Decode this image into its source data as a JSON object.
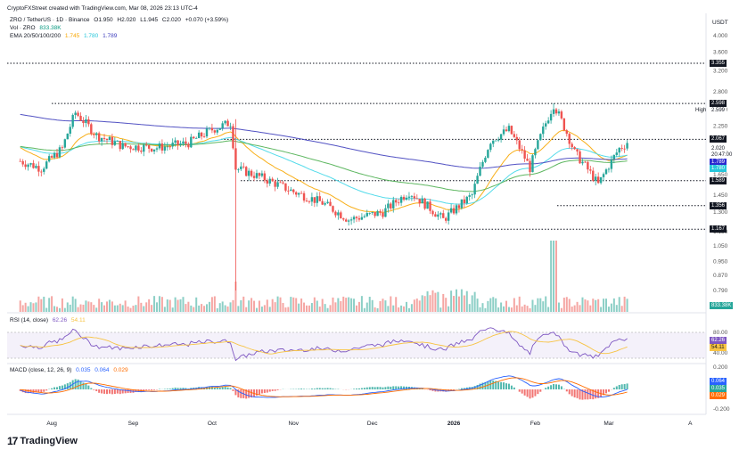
{
  "header": {
    "credit": "CryptoFXStreet created with TradingView.com, Mar 08, 2026 23:13 UTC-4",
    "currency": "USDT",
    "symbol_line": "ZRO / TetherUS · 1D · Binance",
    "ohlc": {
      "o": "O1.950",
      "h": "H2.020",
      "l": "L1.945",
      "c": "C2.020",
      "chg": "+0.070 (+3.59%)"
    },
    "vol_label": "Vol · ZRO",
    "vol_value": "833.38K",
    "ema_label": "EMA 20/50/100/200",
    "ema_values": [
      "1.745",
      "1.780",
      "1.789"
    ],
    "rsi_label": "RSI (14, close)",
    "rsi_values": [
      "62.26",
      "54.11"
    ],
    "macd_label": "MACD (close, 12, 26, 9)",
    "macd_values": [
      "0.035",
      "0.064",
      "0.029"
    ]
  },
  "colors": {
    "up": "#26a69a",
    "down": "#ef5350",
    "vol_up": "#8ccfc6",
    "vol_down": "#f5a6a3",
    "ema20": "#f7a600",
    "ema50": "#40d7e8",
    "ema100": "#4caf50",
    "ema200": "#3f3fbd",
    "rsi": "#7e57c2",
    "rsi_ma": "#f7c343",
    "macd": "#2962ff",
    "signal": "#ff6d00"
  },
  "price_axis": [
    "4.000",
    "3.600",
    "3.200",
    "2.800",
    "2.500",
    "2.250",
    "1.900",
    "1.650",
    "1.450",
    "1.300",
    "1.150",
    "1.050",
    "0.950",
    "0.870",
    "0.790"
  ],
  "price_labels": [
    {
      "text": "3.355",
      "bg": "#131722",
      "fg": "#ffffff"
    },
    {
      "text": "2.598",
      "bg": "#131722",
      "fg": "#ffffff"
    },
    {
      "text": "2.599",
      "bg": "#ffffff",
      "fg": "#131722"
    },
    {
      "text": "High",
      "bg": "#ffffff",
      "fg": "#131722"
    },
    {
      "text": "2.067",
      "bg": "#131722",
      "fg": "#ffffff"
    },
    {
      "text": "2.020",
      "bg": "#ffffff",
      "fg": "#131722"
    },
    {
      "text": "20:47:00",
      "bg": "#ffffff",
      "fg": "#131722"
    },
    {
      "text": "1.789",
      "bg": "#2a2ad0",
      "fg": "#ffffff"
    },
    {
      "text": "1.780",
      "bg": "#26c6da",
      "fg": "#ffffff"
    },
    {
      "text": "1.589",
      "bg": "#131722",
      "fg": "#ffffff"
    },
    {
      "text": "1.356",
      "bg": "#131722",
      "fg": "#ffffff"
    },
    {
      "text": "1.167",
      "bg": "#131722",
      "fg": "#ffffff"
    },
    {
      "text": "833.38K",
      "bg": "#26a69a",
      "fg": "#ffffff"
    }
  ],
  "rsi_axis": [
    "80.00",
    "40.00"
  ],
  "rsi_tags": [
    "62.26",
    "54.11"
  ],
  "macd_axis": [
    "0.200",
    "-0.200"
  ],
  "macd_tags": [
    "0.064",
    "0.035",
    "0.029"
  ],
  "time_axis": [
    "Aug",
    "Sep",
    "Oct",
    "Nov",
    "Dec",
    "2026",
    "Feb",
    "Mar",
    "A"
  ],
  "brand": "TradingView",
  "chart_data": {
    "type": "candlestick",
    "levels": [
      3.355,
      2.598,
      2.067,
      1.589,
      1.356,
      1.167
    ],
    "points": [
      {
        "date": "2025-07-20",
        "close": 1.8
      },
      {
        "date": "2025-07-28",
        "close": 1.72
      },
      {
        "date": "2025-08-05",
        "close": 1.95
      },
      {
        "date": "2025-08-10",
        "close": 2.45
      },
      {
        "date": "2025-08-18",
        "close": 2.12
      },
      {
        "date": "2025-08-28",
        "close": 1.98
      },
      {
        "date": "2025-09-10",
        "close": 1.96
      },
      {
        "date": "2025-09-22",
        "close": 2.02
      },
      {
        "date": "2025-10-01",
        "close": 2.2
      },
      {
        "date": "2025-10-08",
        "close": 2.3
      },
      {
        "date": "2025-10-10",
        "close": 1.72
      },
      {
        "date": "2025-10-20",
        "close": 1.62
      },
      {
        "date": "2025-11-01",
        "close": 1.48
      },
      {
        "date": "2025-11-12",
        "close": 1.38
      },
      {
        "date": "2025-11-22",
        "close": 1.24
      },
      {
        "date": "2025-12-05",
        "close": 1.3
      },
      {
        "date": "2025-12-15",
        "close": 1.48
      },
      {
        "date": "2025-12-28",
        "close": 1.24
      },
      {
        "date": "2026-01-08",
        "close": 1.45
      },
      {
        "date": "2026-01-15",
        "close": 2.05
      },
      {
        "date": "2026-01-22",
        "close": 2.2
      },
      {
        "date": "2026-01-30",
        "close": 1.72
      },
      {
        "date": "2026-02-08",
        "close": 2.58
      },
      {
        "date": "2026-02-16",
        "close": 1.9
      },
      {
        "date": "2026-02-25",
        "close": 1.55
      },
      {
        "date": "2026-03-05",
        "close": 1.95
      },
      {
        "date": "2026-03-08",
        "close": 2.02
      }
    ],
    "ylim": [
      0.75,
      4.1
    ]
  }
}
